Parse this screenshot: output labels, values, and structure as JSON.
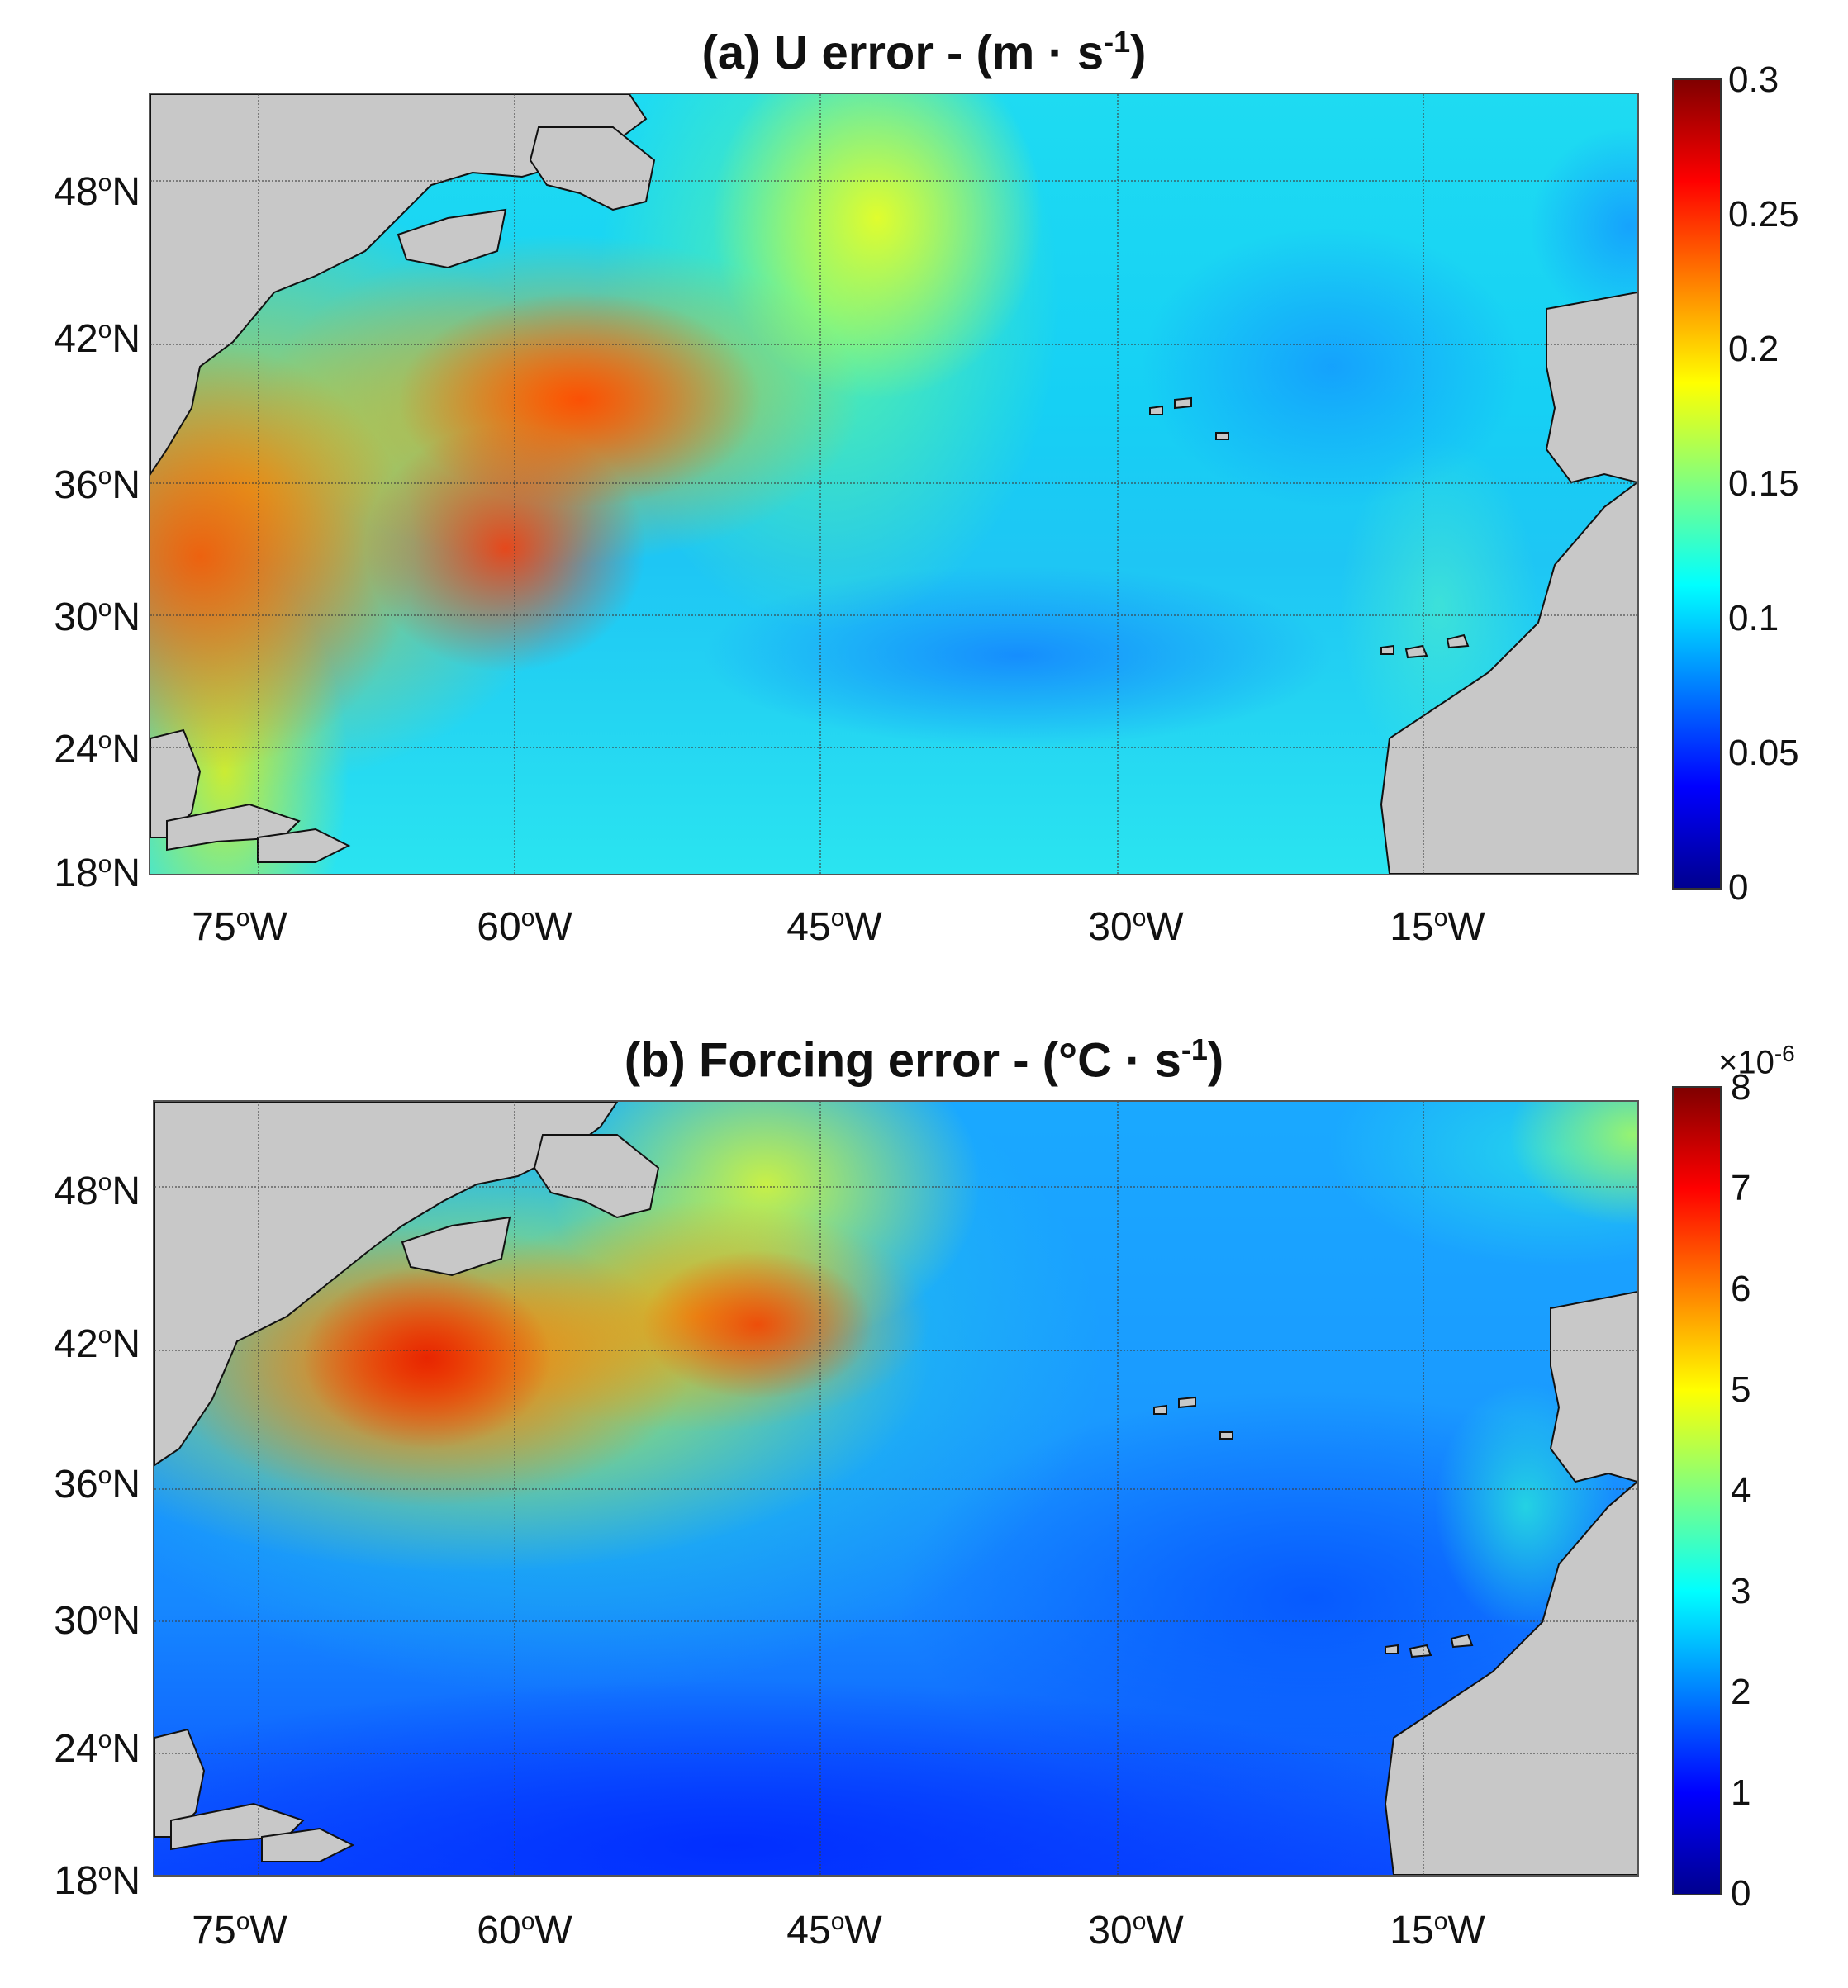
{
  "panels": [
    {
      "title_main": "(a) U error - (m · s",
      "title_exp": "-1",
      "title_close": ")",
      "lat_labels": [
        "48",
        "42",
        "36",
        "30",
        "24",
        "18"
      ],
      "lat_suffix": "N",
      "lon_labels": [
        "75",
        "60",
        "45",
        "30",
        "15"
      ],
      "lon_suffix": "W",
      "colorbar_ticks": [
        "0.3",
        "0.25",
        "0.2",
        "0.15",
        "0.1",
        "0.05",
        "0"
      ],
      "colorbar_exponent": ""
    },
    {
      "title_main": "(b) Forcing error - (°C · s",
      "title_exp": "-1",
      "title_close": ")",
      "lat_labels": [
        "48",
        "42",
        "36",
        "30",
        "24",
        "18"
      ],
      "lat_suffix": "N",
      "lon_labels": [
        "75",
        "60",
        "45",
        "30",
        "15"
      ],
      "lon_suffix": "W",
      "colorbar_ticks": [
        "8",
        "7",
        "6",
        "5",
        "4",
        "3",
        "2",
        "1",
        "0"
      ],
      "colorbar_exponent_base": "×10",
      "colorbar_exponent_power": "-6"
    }
  ],
  "degree_symbol": "o",
  "colormap": "jet",
  "land_color": "#c8c8c8"
}
